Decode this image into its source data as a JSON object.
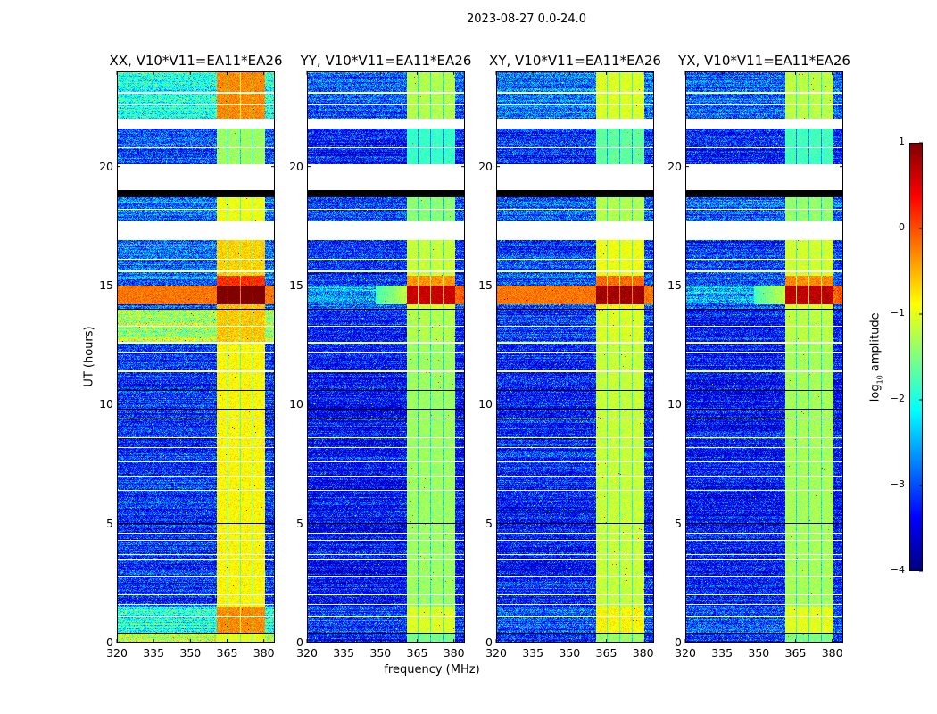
{
  "chart_data": {
    "type": "heatmap",
    "title": "2023-08-27 0.0-24.0",
    "xlabel": "frequency (MHz)",
    "ylabel": "UT (hours)",
    "xlim": [
      320,
      384.5
    ],
    "ylim": [
      0,
      24
    ],
    "xticks": [
      "320",
      "335",
      "350",
      "365",
      "380"
    ],
    "xtick_values": [
      320,
      335,
      350,
      365,
      380
    ],
    "yticks": [
      "0",
      "5",
      "10",
      "15",
      "20"
    ],
    "ytick_values": [
      0,
      5,
      10,
      15,
      20
    ],
    "colorbar": {
      "label_main": "log",
      "label_sub": "10",
      "label_rest": " amplitude",
      "colormap": "jet",
      "range": [
        -4,
        1
      ],
      "ticks": [
        "1",
        "0",
        "−1",
        "−2",
        "−3",
        "−4"
      ],
      "tick_values": [
        1,
        0,
        -1,
        -2,
        -3,
        -4
      ]
    },
    "panels": [
      {
        "title": "XX, V10*V11=EA11*EA26",
        "base_offset": 0.0,
        "band_offset": 0.25,
        "cyan_edges": true,
        "rfi_full": true
      },
      {
        "title": "YY, V10*V11=EA11*EA26",
        "base_offset": -0.2,
        "band_offset": -0.25,
        "cyan_edges": false,
        "rfi_full": false
      },
      {
        "title": "XY, V10*V11=EA11*EA26",
        "base_offset": -0.1,
        "band_offset": -0.05,
        "cyan_edges": false,
        "rfi_full": true
      },
      {
        "title": "YX, V10*V11=EA11*EA26",
        "base_offset": -0.15,
        "band_offset": -0.2,
        "cyan_edges": false,
        "rfi_full": false
      }
    ],
    "band_subbands_mhz": [
      [
        360.7,
        365.1
      ],
      [
        365.5,
        370.2
      ],
      [
        370.6,
        375.3
      ],
      [
        375.7,
        380.4
      ]
    ],
    "time_segments": [
      {
        "from": 22.0,
        "to": 24.0,
        "base": -2.7,
        "band": -1.0,
        "xx_base": -2.0,
        "xx_band": -0.3
      },
      {
        "from": 21.6,
        "to": 22.0,
        "flag": "gap"
      },
      {
        "from": 20.1,
        "to": 21.6,
        "base": -3.0,
        "band": -1.6
      },
      {
        "from": 19.0,
        "to": 20.1,
        "flag": "gap"
      },
      {
        "from": 18.7,
        "to": 19.0,
        "flag": "black"
      },
      {
        "from": 17.7,
        "to": 18.7,
        "base": -2.8,
        "band": -1.2
      },
      {
        "from": 16.9,
        "to": 17.7,
        "flag": "gap"
      },
      {
        "from": 15.4,
        "to": 16.9,
        "base": -2.9,
        "band": -0.9
      },
      {
        "from": 15.0,
        "to": 15.4,
        "base": -2.8,
        "band": -0.1
      },
      {
        "from": 14.2,
        "to": 15.0,
        "base": -2.4,
        "band": 0.9,
        "rfi": 0.0
      },
      {
        "from": 14.0,
        "to": 14.2,
        "base": -2.8,
        "band": -0.8
      },
      {
        "from": 12.6,
        "to": 14.0,
        "base": -3.0,
        "band": -1.0,
        "xx_base": -1.3,
        "xx_band": -0.6
      },
      {
        "from": 1.5,
        "to": 12.6,
        "base": -3.1,
        "band": -1.1
      },
      {
        "from": 0.4,
        "to": 1.5,
        "base": -2.8,
        "band": -0.8,
        "xx_base": -2.0,
        "xx_band": -0.3
      },
      {
        "from": 0.0,
        "to": 0.4,
        "base": -3.0,
        "band": -1.3,
        "xx_base": -1.2,
        "xx_band": -1.0
      }
    ],
    "flag_lines_white": [
      23.1,
      22.6,
      20.8,
      18.2,
      16.1,
      15.6,
      13.3,
      12.6,
      12.2,
      11.4,
      9.4,
      8.6,
      8.2,
      7.6,
      7.0,
      6.4,
      4.6,
      4.3,
      3.7,
      3.5,
      2.8,
      2.0,
      1.6,
      1.1,
      0.4
    ],
    "flag_lines_black": [
      14.0,
      10.6,
      9.8,
      5.0,
      0.4
    ]
  }
}
